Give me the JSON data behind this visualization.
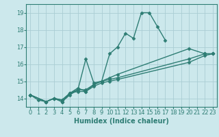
{
  "bg_color": "#cce8ec",
  "grid_color": "#aacdd4",
  "line_color": "#2e7d74",
  "line_width": 1.0,
  "marker": "D",
  "markersize": 2.5,
  "xlabel": "Humidex (Indice chaleur)",
  "xlabel_fontsize": 7,
  "tick_fontsize": 6,
  "xlim": [
    -0.5,
    23.5
  ],
  "ylim": [
    13.5,
    19.5
  ],
  "yticks": [
    14,
    15,
    16,
    17,
    18,
    19
  ],
  "xticks": [
    0,
    1,
    2,
    3,
    4,
    5,
    6,
    7,
    8,
    9,
    10,
    11,
    12,
    13,
    14,
    15,
    16,
    17,
    18,
    19,
    20,
    21,
    22,
    23
  ],
  "series": [
    {
      "x": [
        0,
        1,
        2,
        3,
        4,
        5,
        6,
        7,
        8,
        9,
        10,
        11,
        12,
        13,
        14,
        15,
        16,
        17
      ],
      "y": [
        14.2,
        13.9,
        13.8,
        14.0,
        13.8,
        14.2,
        14.5,
        16.3,
        14.9,
        15.0,
        16.6,
        17.0,
        17.8,
        17.5,
        19.0,
        19.0,
        18.2,
        17.4
      ]
    },
    {
      "x": [
        0,
        2,
        3,
        4,
        5,
        6,
        7,
        8,
        9,
        10,
        11,
        20,
        22,
        23
      ],
      "y": [
        14.2,
        13.8,
        14.0,
        13.8,
        14.3,
        14.6,
        14.4,
        14.8,
        15.0,
        15.2,
        15.4,
        16.9,
        16.6,
        16.6
      ]
    },
    {
      "x": [
        0,
        2,
        3,
        4,
        5,
        6,
        7,
        8,
        9,
        10,
        11,
        20,
        22,
        23
      ],
      "y": [
        14.2,
        13.8,
        14.0,
        13.9,
        14.3,
        14.5,
        14.5,
        14.8,
        15.0,
        15.1,
        15.2,
        16.3,
        16.6,
        16.6
      ]
    },
    {
      "x": [
        0,
        2,
        3,
        4,
        5,
        6,
        7,
        8,
        9,
        10,
        11,
        20,
        22,
        23
      ],
      "y": [
        14.2,
        13.8,
        14.0,
        13.9,
        14.3,
        14.4,
        14.4,
        14.7,
        14.9,
        15.0,
        15.1,
        16.1,
        16.5,
        16.6
      ]
    }
  ]
}
